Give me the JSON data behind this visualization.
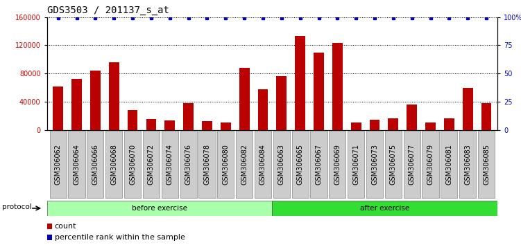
{
  "title": "GDS3503 / 201137_s_at",
  "categories": [
    "GSM306062",
    "GSM306064",
    "GSM306066",
    "GSM306068",
    "GSM306070",
    "GSM306072",
    "GSM306074",
    "GSM306076",
    "GSM306078",
    "GSM306080",
    "GSM306082",
    "GSM306084",
    "GSM306063",
    "GSM306065",
    "GSM306067",
    "GSM306069",
    "GSM306071",
    "GSM306073",
    "GSM306075",
    "GSM306077",
    "GSM306079",
    "GSM306081",
    "GSM306083",
    "GSM306085"
  ],
  "counts": [
    62000,
    72000,
    84000,
    96000,
    28000,
    15000,
    13000,
    38000,
    12000,
    10000,
    88000,
    58000,
    76000,
    133000,
    110000,
    123000,
    10000,
    14000,
    16000,
    36000,
    10000,
    16000,
    60000,
    38000
  ],
  "bar_color": "#bb0000",
  "dot_color": "#0000bb",
  "ylim_left": [
    0,
    160000
  ],
  "ylim_right": [
    0,
    100
  ],
  "yticks_left": [
    0,
    40000,
    80000,
    120000,
    160000
  ],
  "yticks_right": [
    0,
    25,
    50,
    75,
    100
  ],
  "before_count": 12,
  "after_count": 12,
  "before_label": "before exercise",
  "after_label": "after exercise",
  "protocol_label": "protocol",
  "legend_count_label": "count",
  "legend_percentile_label": "percentile rank within the sample",
  "before_color": "#aaffaa",
  "after_color": "#33dd33",
  "xlabel_color": "#cc0000",
  "ylabel_right_color": "#0000cc",
  "plot_bg_color": "#ffffff",
  "title_fontsize": 10,
  "tick_fontsize": 7,
  "dotted_gridline_color": "#000000",
  "xticklabel_bg": "#cccccc"
}
